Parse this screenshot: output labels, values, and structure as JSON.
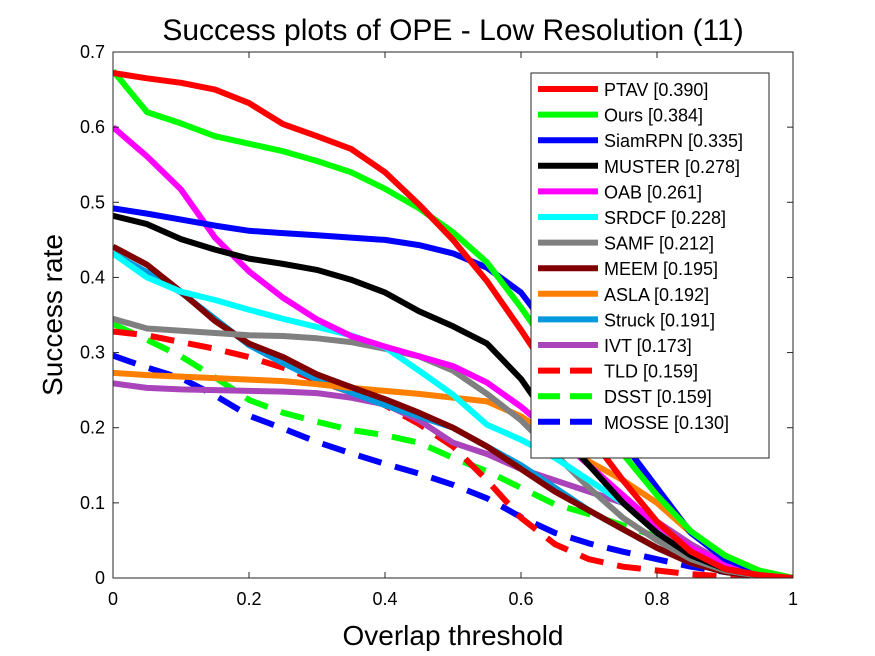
{
  "chart_data": {
    "type": "line",
    "title": "Success plots of OPE - Low Resolution (11)",
    "xlabel": "Overlap threshold",
    "ylabel": "Success rate",
    "xlim": [
      0,
      1
    ],
    "ylim": [
      0,
      0.7
    ],
    "xticks": [
      "0",
      "0.2",
      "0.4",
      "0.6",
      "0.8",
      "1"
    ],
    "yticks": [
      "0",
      "0.1",
      "0.2",
      "0.3",
      "0.4",
      "0.5",
      "0.6",
      "0.7"
    ],
    "grid": false,
    "legend_position": "top-right",
    "x": [
      0,
      0.05,
      0.1,
      0.15,
      0.2,
      0.25,
      0.3,
      0.35,
      0.4,
      0.45,
      0.5,
      0.55,
      0.6,
      0.65,
      0.7,
      0.75,
      0.8,
      0.85,
      0.9,
      0.95,
      1.0
    ],
    "series": [
      {
        "name": "PTAV [0.390]",
        "color": "#ff0000",
        "style": "solid",
        "values": [
          0.672,
          0.665,
          0.659,
          0.65,
          0.632,
          0.604,
          0.588,
          0.571,
          0.54,
          0.497,
          0.45,
          0.395,
          0.33,
          0.262,
          0.19,
          0.13,
          0.075,
          0.035,
          0.012,
          0.004,
          0.0
        ]
      },
      {
        "name": "Ours [0.384]",
        "color": "#00ff00",
        "style": "solid",
        "values": [
          0.675,
          0.62,
          0.605,
          0.588,
          0.578,
          0.568,
          0.555,
          0.54,
          0.518,
          0.492,
          0.46,
          0.42,
          0.36,
          0.295,
          0.225,
          0.165,
          0.11,
          0.062,
          0.03,
          0.01,
          0.0
        ]
      },
      {
        "name": "SiamRPN [0.335]",
        "color": "#0000ff",
        "style": "solid",
        "values": [
          0.492,
          0.485,
          0.477,
          0.469,
          0.462,
          0.459,
          0.456,
          0.453,
          0.45,
          0.443,
          0.432,
          0.413,
          0.38,
          0.32,
          0.25,
          0.18,
          0.12,
          0.06,
          0.025,
          0.008,
          0.0
        ]
      },
      {
        "name": "MUSTER [0.278]",
        "color": "#000000",
        "style": "solid",
        "values": [
          0.482,
          0.471,
          0.451,
          0.437,
          0.425,
          0.418,
          0.41,
          0.397,
          0.38,
          0.355,
          0.335,
          0.312,
          0.265,
          0.2,
          0.15,
          0.1,
          0.06,
          0.03,
          0.012,
          0.004,
          0.0
        ]
      },
      {
        "name": "OAB [0.261]",
        "color": "#ff00ff",
        "style": "solid",
        "values": [
          0.6,
          0.561,
          0.517,
          0.453,
          0.408,
          0.373,
          0.344,
          0.322,
          0.308,
          0.295,
          0.282,
          0.26,
          0.228,
          0.19,
          0.15,
          0.11,
          0.07,
          0.04,
          0.02,
          0.005,
          0.0
        ]
      },
      {
        "name": "SRDCF [0.228]",
        "color": "#00ffff",
        "style": "solid",
        "values": [
          0.432,
          0.4,
          0.381,
          0.37,
          0.357,
          0.345,
          0.334,
          0.323,
          0.307,
          0.276,
          0.244,
          0.204,
          0.184,
          0.16,
          0.13,
          0.1,
          0.06,
          0.03,
          0.012,
          0.004,
          0.0
        ]
      },
      {
        "name": "SAMF [0.212]",
        "color": "#808080",
        "style": "solid",
        "values": [
          0.345,
          0.332,
          0.329,
          0.326,
          0.323,
          0.322,
          0.319,
          0.314,
          0.305,
          0.295,
          0.276,
          0.245,
          0.21,
          0.165,
          0.12,
          0.08,
          0.05,
          0.025,
          0.01,
          0.003,
          0.0
        ]
      },
      {
        "name": "MEEM [0.195]",
        "color": "#800000",
        "style": "solid",
        "values": [
          0.441,
          0.417,
          0.381,
          0.342,
          0.312,
          0.294,
          0.271,
          0.254,
          0.238,
          0.22,
          0.2,
          0.175,
          0.145,
          0.115,
          0.09,
          0.065,
          0.04,
          0.02,
          0.008,
          0.002,
          0.0
        ]
      },
      {
        "name": "ASLA [0.192]",
        "color": "#ff8000",
        "style": "solid",
        "values": [
          0.273,
          0.27,
          0.268,
          0.266,
          0.264,
          0.262,
          0.258,
          0.253,
          0.249,
          0.245,
          0.24,
          0.235,
          0.215,
          0.185,
          0.155,
          0.13,
          0.1,
          0.06,
          0.03,
          0.01,
          0.0
        ]
      },
      {
        "name": "Struck [0.191]",
        "color": "#0099dd",
        "style": "solid",
        "values": [
          0.432,
          0.407,
          0.38,
          0.345,
          0.31,
          0.286,
          0.264,
          0.247,
          0.23,
          0.215,
          0.2,
          0.175,
          0.15,
          0.12,
          0.09,
          0.065,
          0.04,
          0.02,
          0.008,
          0.002,
          0.0
        ]
      },
      {
        "name": "IVT [0.173]",
        "color": "#aa44bb",
        "style": "solid",
        "values": [
          0.259,
          0.253,
          0.251,
          0.25,
          0.249,
          0.248,
          0.246,
          0.24,
          0.231,
          0.21,
          0.18,
          0.165,
          0.145,
          0.13,
          0.115,
          0.1,
          0.075,
          0.045,
          0.02,
          0.006,
          0.0
        ]
      },
      {
        "name": "TLD [0.159]",
        "color": "#ff0000",
        "style": "dashed",
        "values": [
          0.328,
          0.323,
          0.314,
          0.305,
          0.294,
          0.28,
          0.263,
          0.247,
          0.23,
          0.205,
          0.175,
          0.13,
          0.08,
          0.045,
          0.025,
          0.015,
          0.01,
          0.005,
          0.002,
          0.001,
          0.0
        ]
      },
      {
        "name": "DSST [0.159]",
        "color": "#00ff00",
        "style": "dashed",
        "values": [
          0.338,
          0.317,
          0.295,
          0.267,
          0.237,
          0.22,
          0.208,
          0.197,
          0.19,
          0.18,
          0.16,
          0.142,
          0.12,
          0.098,
          0.085,
          0.07,
          0.055,
          0.035,
          0.015,
          0.005,
          0.0
        ]
      },
      {
        "name": "MOSSE [0.130]",
        "color": "#0000ff",
        "style": "dashed",
        "values": [
          0.296,
          0.28,
          0.266,
          0.243,
          0.216,
          0.199,
          0.181,
          0.166,
          0.152,
          0.139,
          0.124,
          0.106,
          0.081,
          0.06,
          0.046,
          0.035,
          0.025,
          0.015,
          0.008,
          0.003,
          0.0
        ]
      }
    ]
  }
}
